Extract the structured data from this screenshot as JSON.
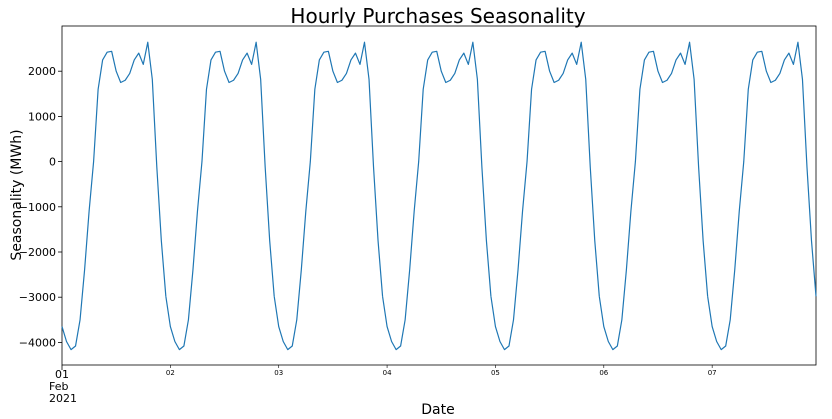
{
  "chart_data": {
    "type": "line",
    "title": "Hourly Purchases Seasonality",
    "xlabel": "Date",
    "ylabel": "Seasonality (MWh)",
    "ylim": [
      -4500,
      3000
    ],
    "yticks": [
      -4000,
      -3000,
      -2000,
      -1000,
      0,
      1000,
      2000
    ],
    "ytick_labels": [
      "−4000",
      "−3000",
      "−2000",
      "−1000",
      "0",
      "1000",
      "2000"
    ],
    "xlim": [
      "2021-02-01 00:00",
      "2021-02-07 23:00"
    ],
    "xticks_major": [
      {
        "date": "2021-02-01",
        "lines": [
          "01",
          "Feb",
          "2021"
        ]
      }
    ],
    "xticks_minor": [
      {
        "date": "2021-02-02",
        "label": "02"
      },
      {
        "date": "2021-02-03",
        "label": "03"
      },
      {
        "date": "2021-02-04",
        "label": "04"
      },
      {
        "date": "2021-02-05",
        "label": "05"
      },
      {
        "date": "2021-02-06",
        "label": "06"
      },
      {
        "date": "2021-02-07",
        "label": "07"
      }
    ],
    "grid": false,
    "line_color": "#1f77b4",
    "series": [
      {
        "start": "2021-02-01 00:00",
        "frequency": "hourly",
        "values": [
          -3650,
          -3980,
          -4160,
          -4080,
          -3500,
          -2400,
          -1100,
          0,
          1600,
          2250,
          2420,
          2440,
          2000,
          1750,
          1800,
          1950,
          2250,
          2400,
          2150,
          2640,
          1820,
          -120,
          -1750,
          -2980
        ]
      },
      {
        "start": "2021-02-02 00:00",
        "frequency": "hourly",
        "values": [
          -3650,
          -3980,
          -4160,
          -4080,
          -3500,
          -2400,
          -1100,
          0,
          1600,
          2250,
          2420,
          2440,
          2000,
          1750,
          1800,
          1950,
          2250,
          2400,
          2150,
          2640,
          1820,
          -120,
          -1750,
          -2980
        ]
      },
      {
        "start": "2021-02-03 00:00",
        "frequency": "hourly",
        "values": [
          -3650,
          -3980,
          -4160,
          -4080,
          -3500,
          -2400,
          -1100,
          0,
          1600,
          2250,
          2420,
          2440,
          2000,
          1750,
          1800,
          1950,
          2250,
          2400,
          2150,
          2640,
          1820,
          -120,
          -1750,
          -2980
        ]
      },
      {
        "start": "2021-02-04 00:00",
        "frequency": "hourly",
        "values": [
          -3650,
          -3980,
          -4160,
          -4080,
          -3500,
          -2400,
          -1100,
          0,
          1600,
          2250,
          2420,
          2440,
          2000,
          1750,
          1800,
          1950,
          2250,
          2400,
          2150,
          2640,
          1820,
          -120,
          -1750,
          -2980
        ]
      },
      {
        "start": "2021-02-05 00:00",
        "frequency": "hourly",
        "values": [
          -3650,
          -3980,
          -4160,
          -4080,
          -3500,
          -2400,
          -1100,
          0,
          1600,
          2250,
          2420,
          2440,
          2000,
          1750,
          1800,
          1950,
          2250,
          2400,
          2150,
          2640,
          1820,
          -120,
          -1750,
          -2980
        ]
      },
      {
        "start": "2021-02-06 00:00",
        "frequency": "hourly",
        "values": [
          -3650,
          -3980,
          -4160,
          -4080,
          -3500,
          -2400,
          -1100,
          0,
          1600,
          2250,
          2420,
          2440,
          2000,
          1750,
          1800,
          1950,
          2250,
          2400,
          2150,
          2640,
          1820,
          -120,
          -1750,
          -2980
        ]
      },
      {
        "start": "2021-02-07 00:00",
        "frequency": "hourly",
        "values": [
          -3650,
          -3980,
          -4160,
          -4080,
          -3500,
          -2400,
          -1100,
          0,
          1600,
          2250,
          2420,
          2440,
          2000,
          1750,
          1800,
          1950,
          2250,
          2400,
          2150,
          2640,
          1820,
          -120,
          -1750,
          -2980
        ]
      }
    ]
  }
}
